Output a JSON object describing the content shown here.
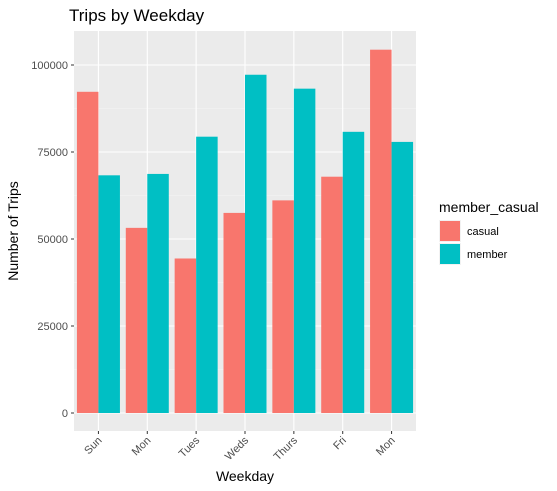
{
  "chart_data": {
    "type": "bar",
    "title": "Trips by Weekday",
    "xlabel": "Weekday",
    "ylabel": "Number of Trips",
    "categories": [
      "Sun",
      "Mon",
      "Tues",
      "Weds",
      "Thurs",
      "Fri",
      "Mon"
    ],
    "series": [
      {
        "name": "casual",
        "color": "#F8766D",
        "values": [
          92300,
          53200,
          44400,
          57500,
          61100,
          67900,
          104400
        ]
      },
      {
        "name": "member",
        "color": "#00BFC4",
        "values": [
          68300,
          68700,
          79400,
          97200,
          93200,
          80800,
          77900
        ]
      }
    ],
    "ylim": [
      0,
      110000
    ],
    "yticks": [
      0,
      25000,
      50000,
      75000,
      100000
    ],
    "grid": true,
    "legend": {
      "title": "member_casual",
      "position": "right"
    },
    "panel_background": "#EBEBEB"
  }
}
